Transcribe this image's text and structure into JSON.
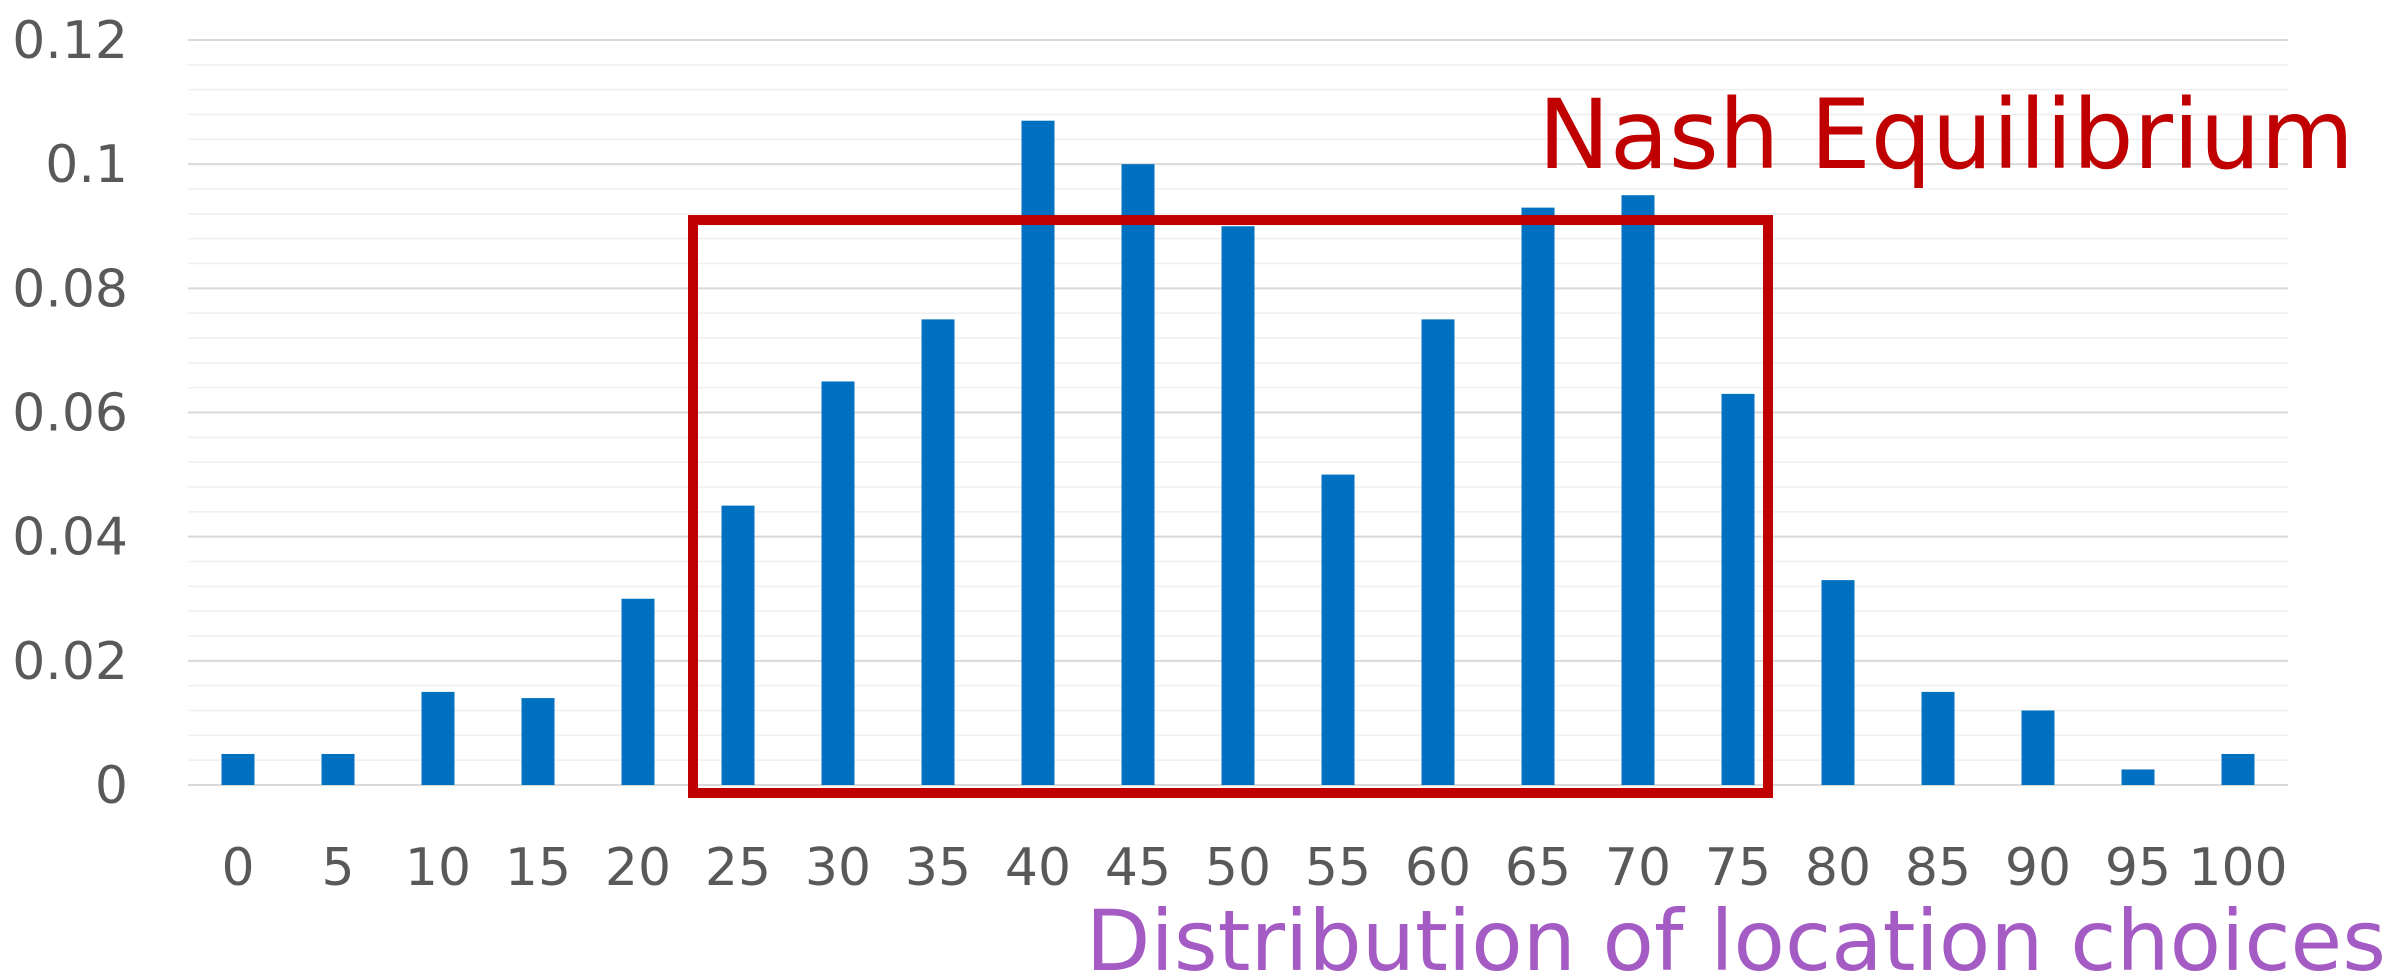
{
  "chart_data": {
    "type": "bar",
    "categories": [
      "0",
      "5",
      "10",
      "15",
      "20",
      "25",
      "30",
      "35",
      "40",
      "45",
      "50",
      "55",
      "60",
      "65",
      "70",
      "75",
      "80",
      "85",
      "90",
      "95",
      "100"
    ],
    "values": [
      0.005,
      0.005,
      0.015,
      0.014,
      0.03,
      0.045,
      0.065,
      0.075,
      0.107,
      0.1,
      0.09,
      0.05,
      0.075,
      0.093,
      0.095,
      0.063,
      0.033,
      0.015,
      0.012,
      0.0025,
      0.005
    ],
    "xlabel": "Distribution of location choices",
    "ylim": [
      0,
      0.12
    ],
    "yticks": [
      "0",
      "0.02",
      "0.04",
      "0.06",
      "0.08",
      "0.1",
      "0.12"
    ],
    "grid": true,
    "bar_color": "#0070C0",
    "annotation": {
      "text": "Nash Equilibrium",
      "color": "#C00000",
      "x_range": [
        "25",
        "75"
      ],
      "y_top": 0.091
    }
  }
}
